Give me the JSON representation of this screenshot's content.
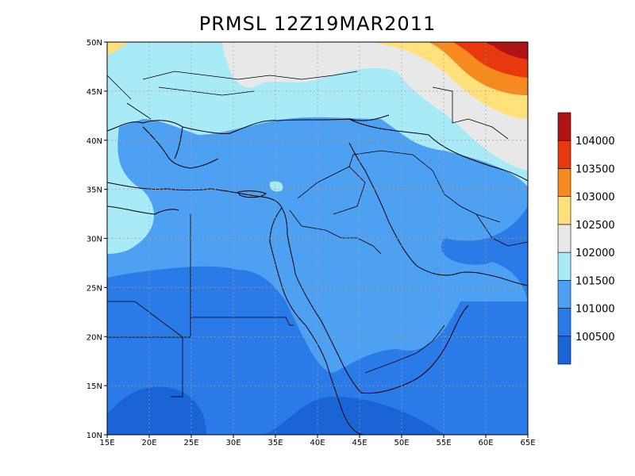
{
  "title": "PRMSL 12Z19MAR2011",
  "lon_labels": [
    "15E",
    "20E",
    "25E",
    "30E",
    "35E",
    "40E",
    "45E",
    "50E",
    "55E",
    "60E",
    "65E"
  ],
  "lat_labels": [
    "10N",
    "15N",
    "20N",
    "25N",
    "30N",
    "35N",
    "40N",
    "45N",
    "50N"
  ],
  "colorbar": {
    "labels": [
      "100500",
      "101000",
      "101500",
      "102000",
      "102500",
      "103000",
      "103500",
      "104000"
    ],
    "colors": [
      "#1a64d6",
      "#2a7ae8",
      "#4ea0f2",
      "#a9eaf7",
      "#e8e8e8",
      "#ffe07a",
      "#f78a1e",
      "#e8380e",
      "#b01414"
    ]
  },
  "chart_data": {
    "type": "heatmap",
    "title": "PRMSL 12Z19MAR2011",
    "xlim": [
      15,
      65
    ],
    "ylim": [
      10,
      50
    ],
    "xticks": [
      15,
      20,
      25,
      30,
      35,
      40,
      45,
      50,
      55,
      60,
      65
    ],
    "yticks": [
      10,
      15,
      20,
      25,
      30,
      35,
      40,
      45,
      50
    ],
    "grid": true,
    "levels": [
      100500,
      101000,
      101500,
      102000,
      102500,
      103000,
      103500,
      104000
    ]
  }
}
